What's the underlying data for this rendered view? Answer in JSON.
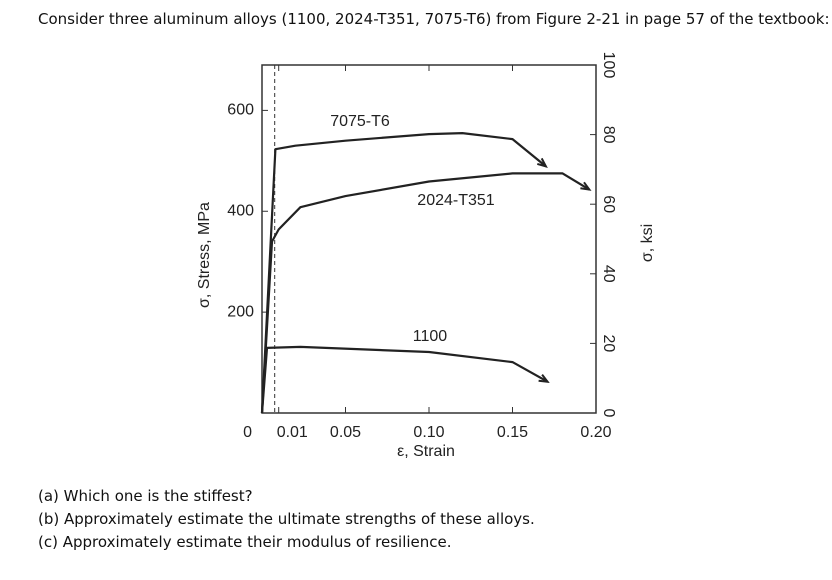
{
  "intro": "Consider three aluminum alloys (1100, 2024-T351, 7075-T6) from Figure 2-21 in page 57 of the textbook:",
  "questions": [
    "(a) Which one is the stiffest?",
    "(b) Approximately estimate the ultimate strengths of these alloys.",
    "(c) Approximately estimate their modulus of resilience."
  ],
  "chart_data": {
    "type": "line",
    "xlabel": "ε, Strain",
    "ylabel": "σ, Stress, MPa",
    "y2label": "σ, ksi",
    "xlim": [
      0,
      0.2
    ],
    "xticks": [
      0,
      0.01,
      0.05,
      {
        "value": 0.1,
        "label": "0.10"
      },
      0.15,
      {
        "value": 0.2,
        "label": "0.20"
      }
    ],
    "ylim": [
      0,
      690
    ],
    "yticks": [
      200,
      400,
      600
    ],
    "y2lim": [
      0,
      100
    ],
    "y2ticks": [
      0,
      20,
      40,
      60,
      80,
      100
    ],
    "series": [
      {
        "name": "7075-T6",
        "color": "#222222",
        "x": [
          0,
          0.008,
          0.02,
          0.05,
          0.1,
          0.12,
          0.15,
          0.17
        ],
        "values": [
          0,
          523,
          530,
          540,
          553,
          555,
          543,
          489
        ]
      },
      {
        "name": "2024-T351",
        "color": "#222222",
        "x": [
          0,
          0.006,
          0.01,
          0.023,
          0.05,
          0.1,
          0.15,
          0.18,
          0.196
        ],
        "values": [
          0,
          340,
          364,
          408,
          430,
          459,
          475,
          475,
          443
        ]
      },
      {
        "name": "1100",
        "color": "#222222",
        "x": [
          0,
          0.003,
          0.023,
          0.1,
          0.15,
          0.171
        ],
        "values": [
          0,
          129,
          131,
          121,
          101,
          62
        ]
      }
    ]
  }
}
